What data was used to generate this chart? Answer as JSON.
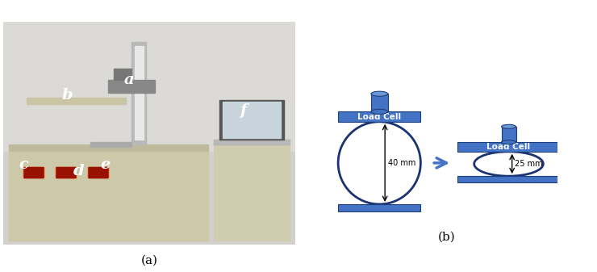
{
  "fig_width": 7.4,
  "fig_height": 3.37,
  "dpi": 100,
  "background_color": "#ffffff",
  "blue_color": "#4472C4",
  "blue_dark": "#2d5fa8",
  "blue_edge": "#1e3f7a",
  "caption_a": "(a)",
  "caption_b": "(b)",
  "load_cell_text": "Load Cell",
  "dim_40": "40 mm",
  "dim_25": "25 mm",
  "photo_bg": "#c8c8c8",
  "photo_wall": "#d8d8d8",
  "photo_machine": "#c8c4a2",
  "photo_panel": "#b8b49a"
}
